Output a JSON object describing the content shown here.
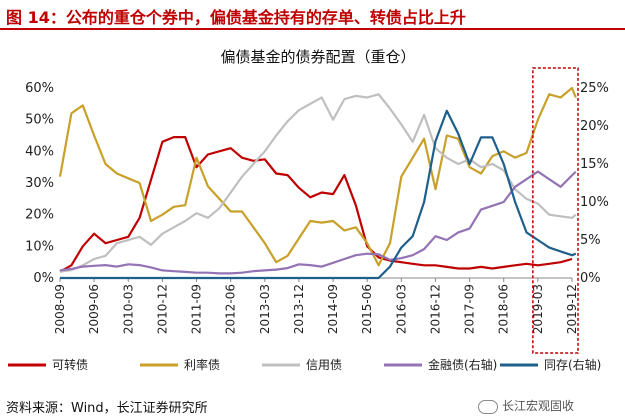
{
  "figure": {
    "title": "图 14：公布的重仓个券中，偏债基金持有的存单、转债占比上升",
    "source": "资料来源：Wind，长江证券研究所",
    "watermark": "长江宏观固收"
  },
  "chart_data": {
    "type": "line",
    "title": "偏债基金的债券配置（重仓）",
    "y_left": {
      "min": 0,
      "max": 60,
      "step": 10,
      "format": "%"
    },
    "y_right": {
      "min": 0,
      "max": 25,
      "step": 5,
      "format": "%"
    },
    "x_tick_labels": [
      "2008-09",
      "2009-06",
      "2010-03",
      "2010-12",
      "2011-09",
      "2012-06",
      "2013-03",
      "2013-12",
      "2014-09",
      "2015-06",
      "2016-03",
      "2016-12",
      "2017-09",
      "2018-06",
      "2019-03",
      "2019-12"
    ],
    "x_start": "2008-09",
    "x_end": "2019-12",
    "colors": {
      "convertible": "#c00000",
      "rate": "#c8a02a",
      "credit": "#bfbfbf",
      "financial": "#9473b4",
      "ncd": "#1f5f8b",
      "highlight": "#c00000"
    },
    "highlight_box": {
      "from": "2019-03",
      "to": "2019-12"
    },
    "series": [
      {
        "key": "convertible",
        "name": "可转债",
        "axis": "left",
        "points": [
          [
            "2008-09",
            2
          ],
          [
            "2008-12",
            4
          ],
          [
            "2009-03",
            10
          ],
          [
            "2009-06",
            14
          ],
          [
            "2009-09",
            11
          ],
          [
            "2009-12",
            12
          ],
          [
            "2010-03",
            13
          ],
          [
            "2010-06",
            19
          ],
          [
            "2010-09",
            31
          ],
          [
            "2010-12",
            43
          ],
          [
            "2011-03",
            44.5
          ],
          [
            "2011-06",
            44.5
          ],
          [
            "2011-09",
            35
          ],
          [
            "2011-12",
            39
          ],
          [
            "2012-03",
            40
          ],
          [
            "2012-06",
            41
          ],
          [
            "2012-09",
            38
          ],
          [
            "2012-12",
            37
          ],
          [
            "2013-03",
            37.5
          ],
          [
            "2013-06",
            33
          ],
          [
            "2013-09",
            32.5
          ],
          [
            "2013-12",
            28.5
          ],
          [
            "2014-03",
            25.5
          ],
          [
            "2014-06",
            27
          ],
          [
            "2014-09",
            26.5
          ],
          [
            "2014-12",
            32.5
          ],
          [
            "2015-03",
            23
          ],
          [
            "2015-06",
            10
          ],
          [
            "2015-09",
            6.5
          ],
          [
            "2015-12",
            5.5
          ],
          [
            "2016-03",
            5
          ],
          [
            "2016-06",
            4.5
          ],
          [
            "2016-09",
            4
          ],
          [
            "2016-12",
            4
          ],
          [
            "2017-03",
            3.5
          ],
          [
            "2017-06",
            3
          ],
          [
            "2017-09",
            3
          ],
          [
            "2017-12",
            3.5
          ],
          [
            "2018-03",
            3
          ],
          [
            "2018-06",
            3.5
          ],
          [
            "2018-09",
            4
          ],
          [
            "2018-12",
            4.5
          ],
          [
            "2019-03",
            4
          ],
          [
            "2019-06",
            4.5
          ],
          [
            "2019-09",
            5
          ],
          [
            "2019-12",
            6
          ]
        ]
      },
      {
        "key": "rate",
        "name": "利率债",
        "axis": "left",
        "points": [
          [
            "2008-09",
            32
          ],
          [
            "2008-12",
            52
          ],
          [
            "2009-03",
            54.5
          ],
          [
            "2009-06",
            45
          ],
          [
            "2009-09",
            36
          ],
          [
            "2009-12",
            33
          ],
          [
            "2010-03",
            31.5
          ],
          [
            "2010-06",
            30
          ],
          [
            "2010-09",
            18
          ],
          [
            "2010-12",
            20
          ],
          [
            "2011-03",
            22.5
          ],
          [
            "2011-06",
            23
          ],
          [
            "2011-09",
            38
          ],
          [
            "2011-12",
            29
          ],
          [
            "2012-03",
            25
          ],
          [
            "2012-06",
            21
          ],
          [
            "2012-09",
            21
          ],
          [
            "2012-12",
            16
          ],
          [
            "2013-03",
            11
          ],
          [
            "2013-06",
            5
          ],
          [
            "2013-09",
            7
          ],
          [
            "2013-12",
            12.5
          ],
          [
            "2014-03",
            18
          ],
          [
            "2014-06",
            17.5
          ],
          [
            "2014-09",
            18
          ],
          [
            "2014-12",
            15
          ],
          [
            "2015-03",
            16
          ],
          [
            "2015-06",
            11
          ],
          [
            "2015-09",
            4
          ],
          [
            "2015-12",
            11
          ],
          [
            "2016-03",
            32
          ],
          [
            "2016-06",
            38
          ],
          [
            "2016-09",
            44
          ],
          [
            "2016-12",
            28
          ],
          [
            "2017-03",
            45
          ],
          [
            "2017-06",
            44
          ],
          [
            "2017-09",
            35
          ],
          [
            "2017-12",
            33
          ],
          [
            "2018-03",
            38.5
          ],
          [
            "2018-06",
            40
          ],
          [
            "2018-09",
            38
          ],
          [
            "2018-12",
            39.5
          ],
          [
            "2019-03",
            50
          ],
          [
            "2019-06",
            58
          ],
          [
            "2019-09",
            57
          ],
          [
            "2019-12",
            60
          ],
          [
            "2020-01",
            57
          ]
        ]
      },
      {
        "key": "credit",
        "name": "信用债",
        "axis": "left",
        "points": [
          [
            "2008-09",
            2
          ],
          [
            "2008-12",
            2.5
          ],
          [
            "2009-03",
            4
          ],
          [
            "2009-06",
            6
          ],
          [
            "2009-09",
            7
          ],
          [
            "2009-12",
            11
          ],
          [
            "2010-03",
            12
          ],
          [
            "2010-06",
            13
          ],
          [
            "2010-09",
            10.5
          ],
          [
            "2010-12",
            14
          ],
          [
            "2011-03",
            16
          ],
          [
            "2011-06",
            18
          ],
          [
            "2011-09",
            20.5
          ],
          [
            "2011-12",
            19
          ],
          [
            "2012-03",
            22
          ],
          [
            "2012-06",
            27
          ],
          [
            "2012-09",
            32
          ],
          [
            "2012-12",
            36
          ],
          [
            "2013-03",
            40
          ],
          [
            "2013-06",
            45
          ],
          [
            "2013-09",
            49.5
          ],
          [
            "2013-12",
            53
          ],
          [
            "2014-03",
            55
          ],
          [
            "2014-06",
            57
          ],
          [
            "2014-09",
            50
          ],
          [
            "2014-12",
            56.5
          ],
          [
            "2015-03",
            57.5
          ],
          [
            "2015-06",
            57
          ],
          [
            "2015-09",
            58
          ],
          [
            "2015-12",
            53.5
          ],
          [
            "2016-03",
            48.5
          ],
          [
            "2016-06",
            43
          ],
          [
            "2016-09",
            51.5
          ],
          [
            "2016-12",
            41
          ],
          [
            "2017-03",
            38
          ],
          [
            "2017-06",
            36
          ],
          [
            "2017-09",
            37.5
          ],
          [
            "2017-12",
            35
          ],
          [
            "2018-03",
            36
          ],
          [
            "2018-06",
            34
          ],
          [
            "2018-09",
            28
          ],
          [
            "2018-12",
            25
          ],
          [
            "2019-03",
            23.5
          ],
          [
            "2019-06",
            20
          ],
          [
            "2019-09",
            19.5
          ],
          [
            "2019-12",
            19
          ],
          [
            "2020-01",
            20
          ]
        ]
      },
      {
        "key": "financial",
        "name": "金融债(右轴)",
        "axis": "right",
        "points": [
          [
            "2008-09",
            1
          ],
          [
            "2008-12",
            1.2
          ],
          [
            "2009-03",
            1.5
          ],
          [
            "2009-06",
            1.6
          ],
          [
            "2009-09",
            1.7
          ],
          [
            "2009-12",
            1.5
          ],
          [
            "2010-03",
            1.8
          ],
          [
            "2010-06",
            1.7
          ],
          [
            "2010-09",
            1.4
          ],
          [
            "2010-12",
            1
          ],
          [
            "2011-03",
            0.9
          ],
          [
            "2011-06",
            0.8
          ],
          [
            "2011-09",
            0.7
          ],
          [
            "2011-12",
            0.7
          ],
          [
            "2012-03",
            0.6
          ],
          [
            "2012-06",
            0.6
          ],
          [
            "2012-09",
            0.7
          ],
          [
            "2012-12",
            0.9
          ],
          [
            "2013-03",
            1
          ],
          [
            "2013-06",
            1.1
          ],
          [
            "2013-09",
            1.3
          ],
          [
            "2013-12",
            1.8
          ],
          [
            "2014-03",
            1.7
          ],
          [
            "2014-06",
            1.5
          ],
          [
            "2014-09",
            2
          ],
          [
            "2014-12",
            2.5
          ],
          [
            "2015-03",
            3
          ],
          [
            "2015-06",
            3.2
          ],
          [
            "2015-09",
            3.1
          ],
          [
            "2015-12",
            2.4
          ],
          [
            "2016-03",
            2.6
          ],
          [
            "2016-06",
            3
          ],
          [
            "2016-09",
            3.8
          ],
          [
            "2016-12",
            5.5
          ],
          [
            "2017-03",
            5
          ],
          [
            "2017-06",
            6
          ],
          [
            "2017-09",
            6.5
          ],
          [
            "2017-12",
            9
          ],
          [
            "2018-03",
            9.5
          ],
          [
            "2018-06",
            10
          ],
          [
            "2018-09",
            12
          ],
          [
            "2018-12",
            13
          ],
          [
            "2019-03",
            14
          ],
          [
            "2019-06",
            13
          ],
          [
            "2019-09",
            12
          ],
          [
            "2019-12",
            13.5
          ],
          [
            "2020-01",
            14
          ]
        ]
      },
      {
        "key": "ncd",
        "name": "同存(右轴)",
        "axis": "right",
        "points": [
          [
            "2008-09",
            0
          ],
          [
            "2015-09",
            0
          ],
          [
            "2015-12",
            1.5
          ],
          [
            "2016-03",
            4
          ],
          [
            "2016-06",
            5.5
          ],
          [
            "2016-09",
            10
          ],
          [
            "2016-12",
            18
          ],
          [
            "2017-03",
            22
          ],
          [
            "2017-06",
            19
          ],
          [
            "2017-09",
            15
          ],
          [
            "2017-12",
            18.5
          ],
          [
            "2018-03",
            18.5
          ],
          [
            "2018-06",
            15
          ],
          [
            "2018-09",
            10
          ],
          [
            "2018-12",
            6
          ],
          [
            "2019-03",
            5
          ],
          [
            "2019-06",
            4
          ],
          [
            "2019-09",
            3.5
          ],
          [
            "2019-12",
            3
          ],
          [
            "2020-01",
            3.2
          ]
        ]
      }
    ]
  }
}
